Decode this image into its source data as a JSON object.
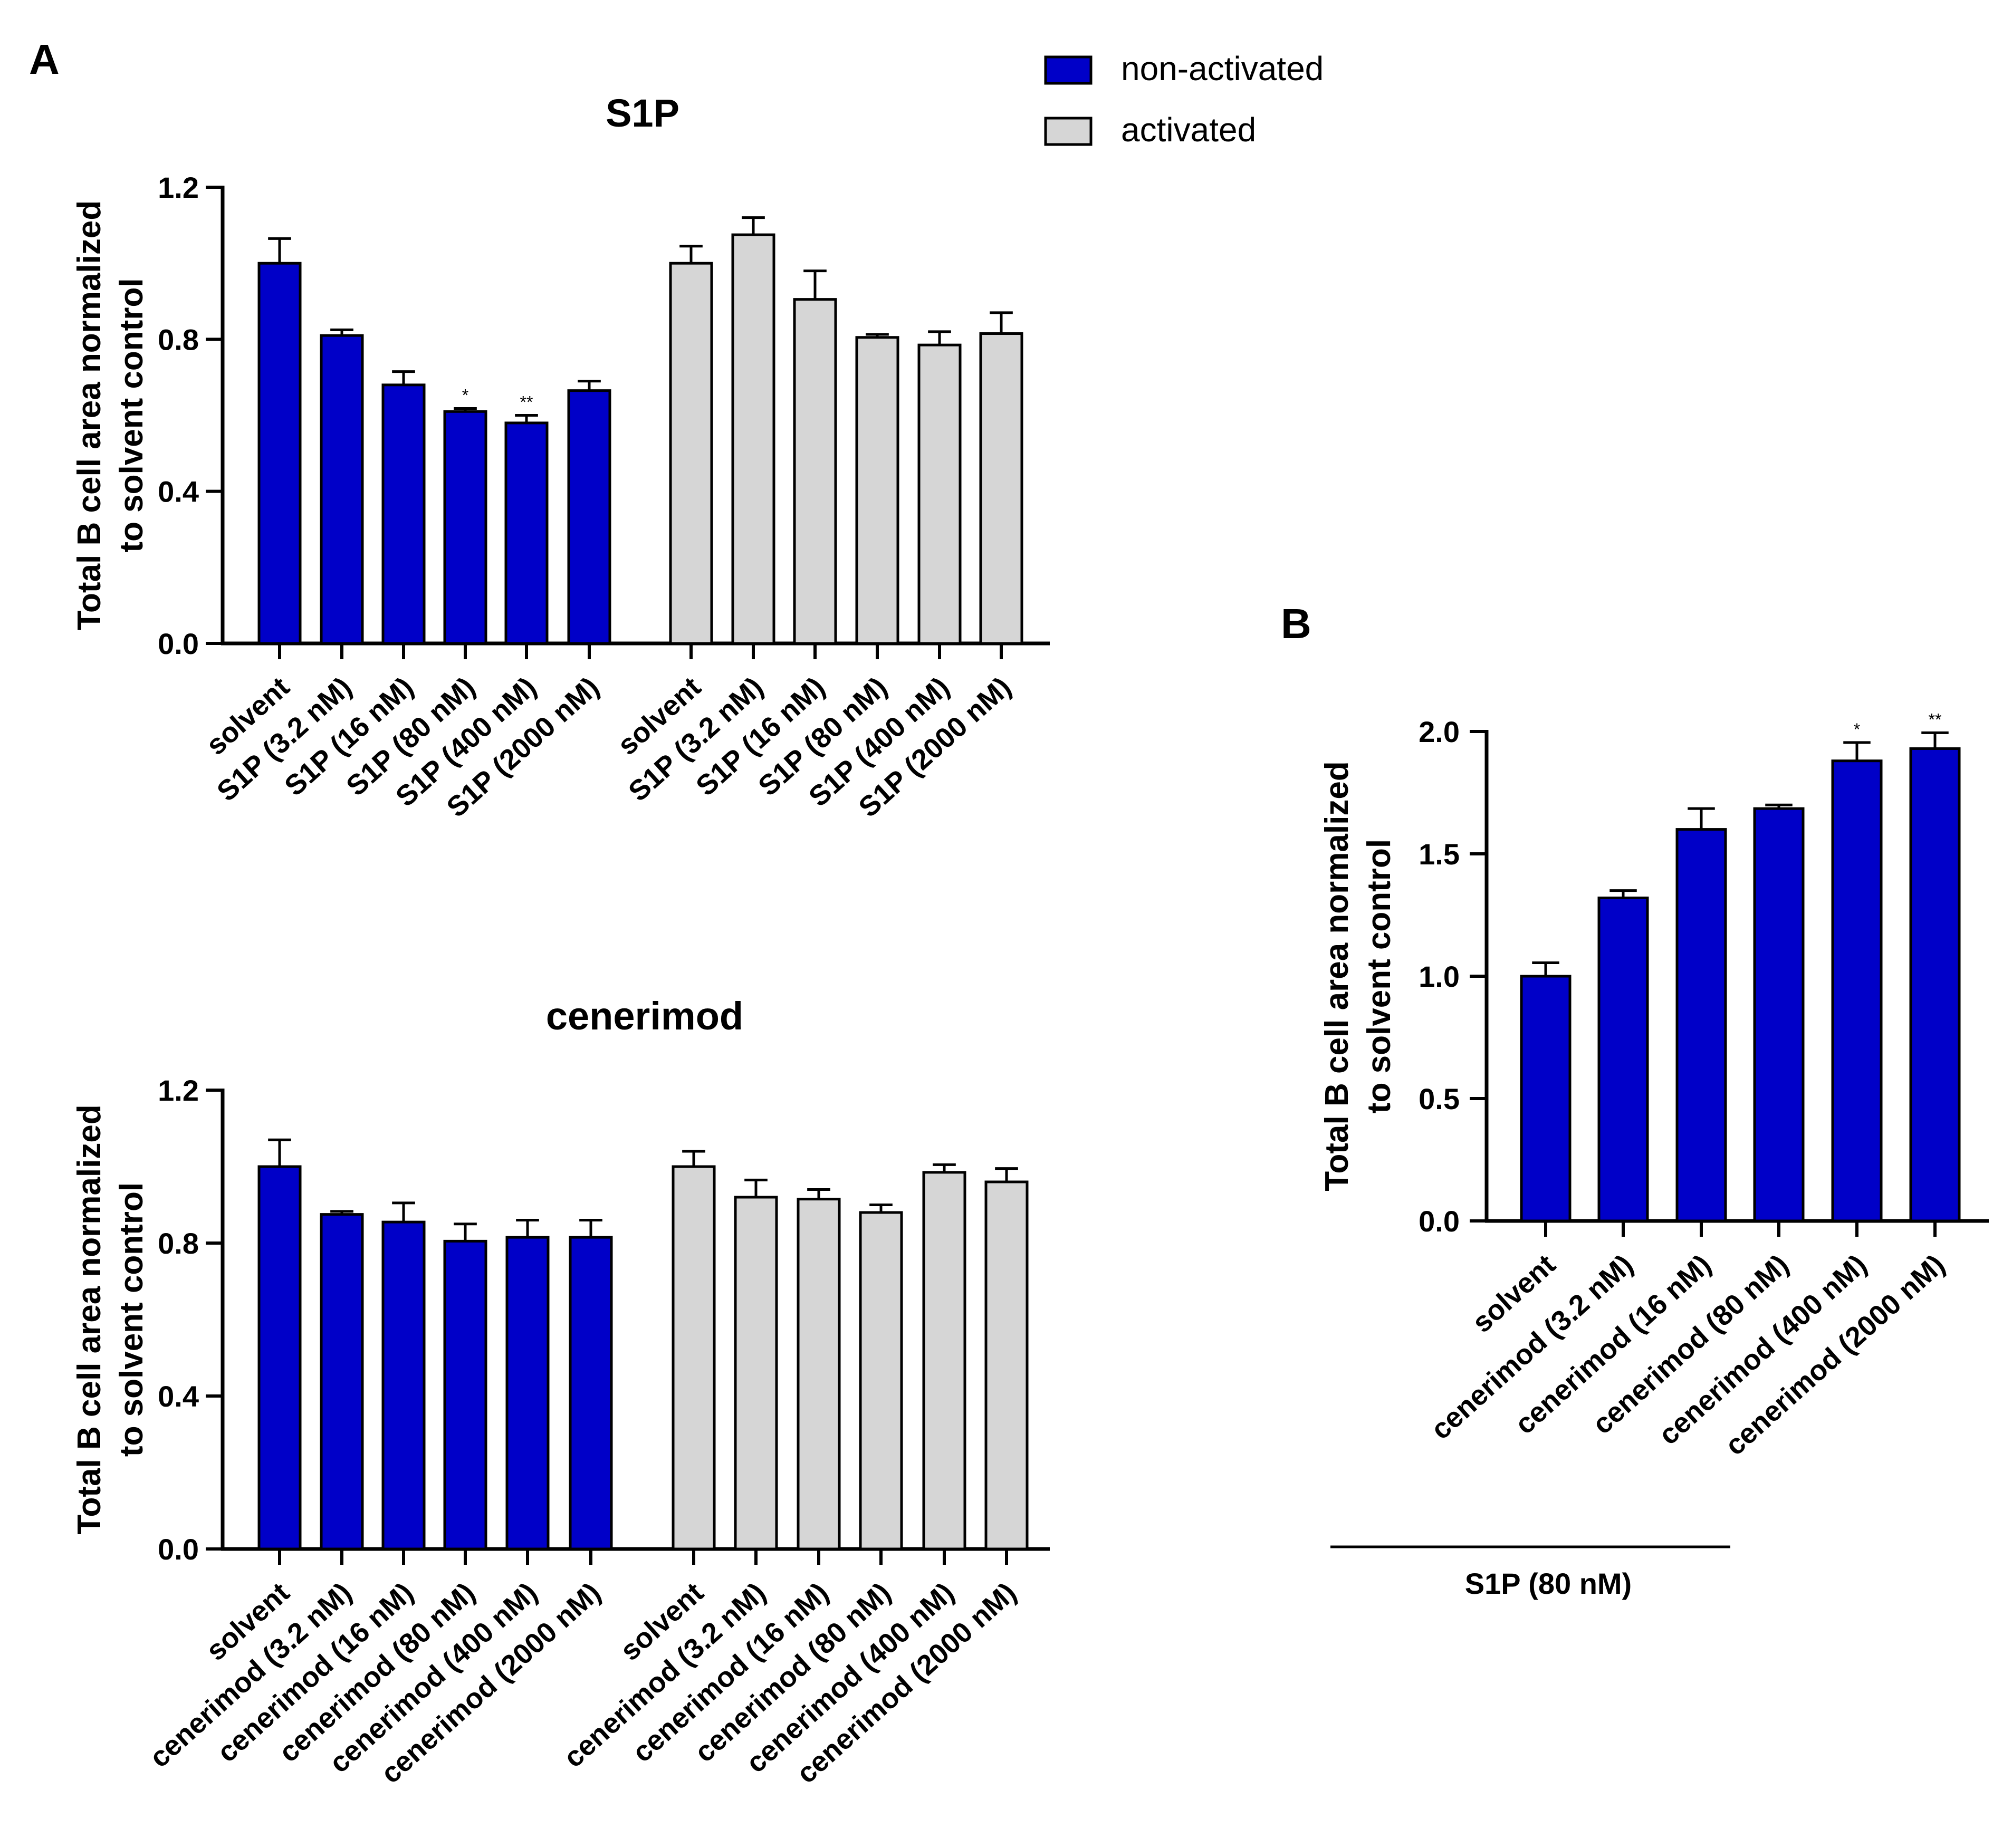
{
  "panel_labels": {
    "a": "A",
    "b": "B"
  },
  "legend": {
    "items": [
      {
        "name": "non-activated",
        "color": "#0000C8"
      },
      {
        "name": "activated",
        "color": "#D6D6D6"
      }
    ]
  },
  "chart_data": [
    {
      "id": "s1p",
      "panel": "A",
      "type": "bar",
      "title": "S1P",
      "ylabel_lines": [
        "Total B cell area normalized",
        "to solvent control"
      ],
      "ylim": [
        0,
        1.2
      ],
      "yticks": [
        "0.0",
        "0.4",
        "0.8",
        "1.2"
      ],
      "ytick_values": [
        0,
        0.4,
        0.8,
        1.2
      ],
      "categories": [
        "solvent",
        "S1P (3.2 nM)",
        "S1P (16 nM)",
        "S1P (80 nM)",
        "S1P (400 nM)",
        "S1P (2000 nM)"
      ],
      "series": [
        {
          "name": "non-activated",
          "color": "#0000C8",
          "values": [
            1.0,
            0.81,
            0.68,
            0.61,
            0.58,
            0.665
          ],
          "errors": [
            0.065,
            0.015,
            0.035,
            0.008,
            0.02,
            0.025
          ],
          "significance": [
            "",
            "",
            "",
            "*",
            "**",
            ""
          ]
        },
        {
          "name": "activated",
          "color": "#D6D6D6",
          "values": [
            1.0,
            1.075,
            0.905,
            0.805,
            0.785,
            0.815
          ],
          "errors": [
            0.045,
            0.045,
            0.075,
            0.008,
            0.035,
            0.055
          ],
          "significance": [
            "",
            "",
            "",
            "",
            "",
            ""
          ]
        }
      ]
    },
    {
      "id": "cenerimod",
      "panel": "A",
      "type": "bar",
      "title": "cenerimod",
      "ylabel_lines": [
        "Total B cell area normalized",
        "to solvent control"
      ],
      "ylim": [
        0,
        1.2
      ],
      "yticks": [
        "0.0",
        "0.4",
        "0.8",
        "1.2"
      ],
      "ytick_values": [
        0,
        0.4,
        0.8,
        1.2
      ],
      "categories": [
        "solvent",
        "cenerimod (3.2 nM)",
        "cenerimod (16 nM)",
        "cenerimod (80 nM)",
        "cenerimod (400 nM)",
        "cenerimod (2000 nM)"
      ],
      "series": [
        {
          "name": "non-activated",
          "color": "#0000C8",
          "values": [
            1.0,
            0.875,
            0.855,
            0.805,
            0.815,
            0.815
          ],
          "errors": [
            0.07,
            0.008,
            0.05,
            0.045,
            0.045,
            0.045
          ],
          "significance": [
            "",
            "",
            "",
            "",
            "",
            ""
          ]
        },
        {
          "name": "activated",
          "color": "#D6D6D6",
          "values": [
            1.0,
            0.92,
            0.915,
            0.88,
            0.985,
            0.96
          ],
          "errors": [
            0.04,
            0.045,
            0.025,
            0.02,
            0.02,
            0.035
          ],
          "significance": [
            "",
            "",
            "",
            "",
            "",
            ""
          ]
        }
      ]
    },
    {
      "id": "panel-b",
      "panel": "B",
      "type": "bar",
      "title": "",
      "ylabel_lines": [
        "Total B cell area normalized",
        "to solvent control"
      ],
      "ylim": [
        0,
        2.0
      ],
      "yticks": [
        "0.0",
        "0.5",
        "1.0",
        "1.5",
        "2.0"
      ],
      "ytick_values": [
        0,
        0.5,
        1.0,
        1.5,
        2.0
      ],
      "categories": [
        "solvent",
        "cenerimod (3.2 nM)",
        "cenerimod (16 nM)",
        "cenerimod (80 nM)",
        "cenerimod (400 nM)",
        "cenerimod (2000 nM)"
      ],
      "group_label": "S1P (80 nM)",
      "series": [
        {
          "name": "non-activated",
          "color": "#0000C8",
          "values": [
            1.0,
            1.32,
            1.6,
            1.685,
            1.88,
            1.93
          ],
          "errors": [
            0.055,
            0.03,
            0.085,
            0.015,
            0.075,
            0.065
          ],
          "significance": [
            "",
            "",
            "",
            "",
            "*",
            "**"
          ]
        }
      ]
    }
  ]
}
